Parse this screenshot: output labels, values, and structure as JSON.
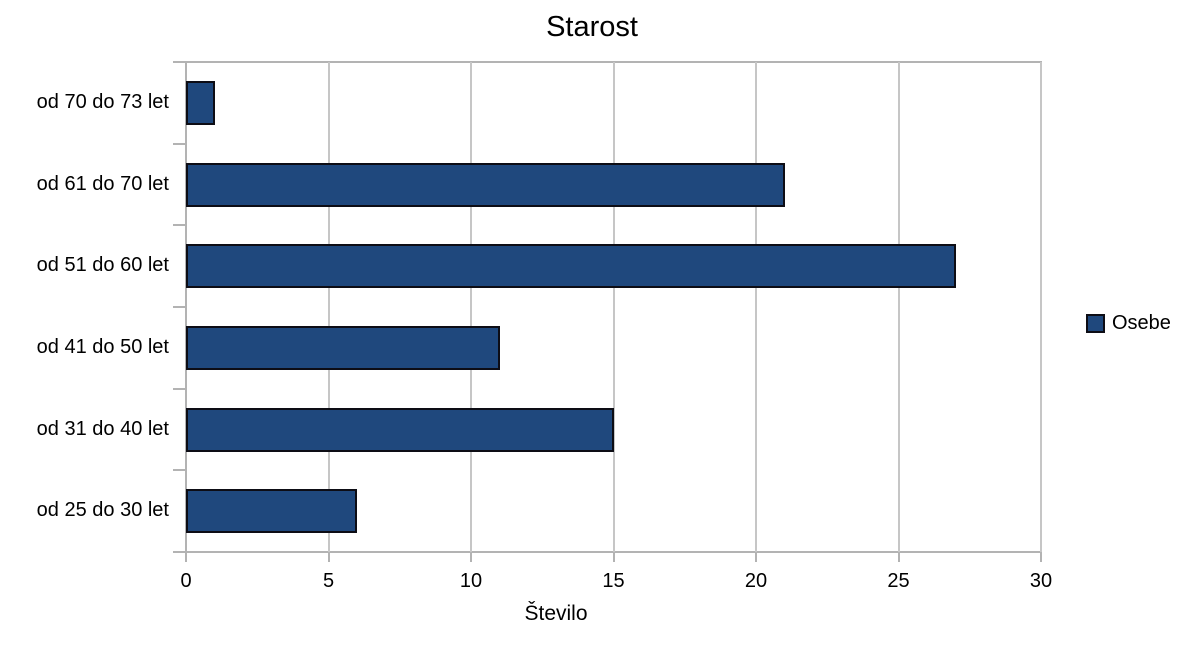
{
  "chart_data": {
    "type": "bar",
    "orientation": "horizontal",
    "title": "Starost",
    "xlabel": "Število",
    "ylabel": "",
    "categories": [
      "od 70 do 73 let",
      "od 61 do 70 let",
      "od 51 do 60 let",
      "od 41 do 50 let",
      "od 31 do 40 let",
      "od 25 do 30 let"
    ],
    "series": [
      {
        "name": "Osebe",
        "color": "#1f487d",
        "border_color": "#0d0d15",
        "values": [
          1,
          21,
          27,
          11,
          15,
          6
        ]
      }
    ],
    "xlim": [
      0,
      30
    ],
    "xticks": [
      0,
      5,
      10,
      15,
      20,
      25,
      30
    ],
    "grid": "vertical-only",
    "gridline_color": "#c6c6c6",
    "axis_color": "#b3b3b3",
    "legend_position": "right",
    "background_color": "#ffffff"
  }
}
